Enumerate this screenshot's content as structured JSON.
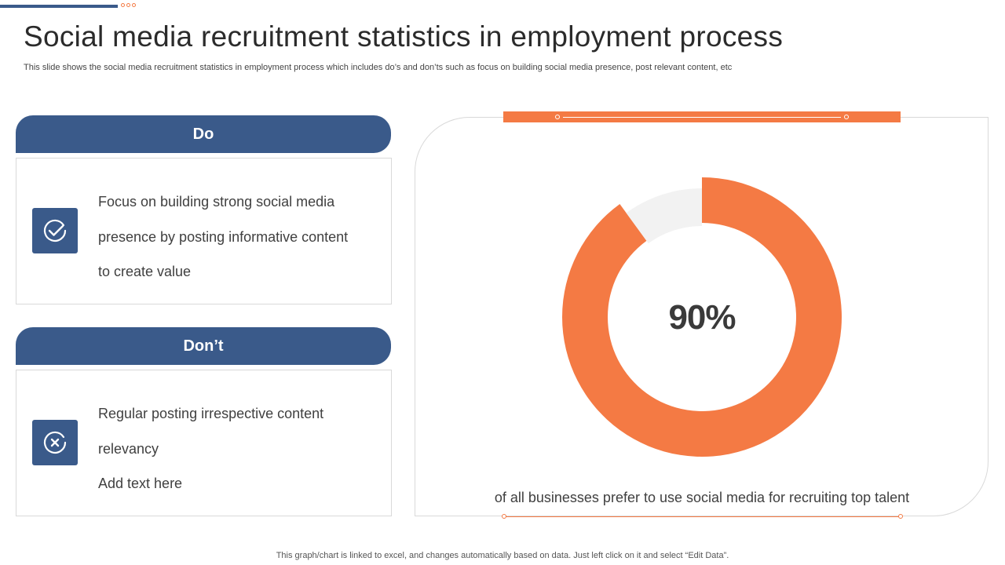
{
  "title": "Social media recruitment statistics in employment process",
  "subtitle": "This slide shows the social media recruitment statistics in employment process which includes do’s and don’ts such as focus on building social media presence, post relevant content, etc",
  "do_section": {
    "header": "Do",
    "icon": "check-circle-icon",
    "lines": [
      "Focus on building strong social media",
      "presence by posting informative content",
      "to create value"
    ]
  },
  "dont_section": {
    "header": "Don’t",
    "icon": "x-circle-icon",
    "lines": [
      "Regular posting irrespective content",
      "relevancy",
      "Add text here"
    ]
  },
  "chart_data": {
    "type": "pie",
    "categories": [
      "",
      ""
    ],
    "values": [
      90,
      10
    ],
    "center_label": "90%",
    "caption": "of all businesses prefer to use social media for recruiting top talent",
    "colors": [
      "#f47a44",
      "#f2f2f2"
    ]
  },
  "footer": "This graph/chart is linked to excel,  and changes automatically based on data. Just left click on it and select “Edit Data”.",
  "colors": {
    "accent_blue": "#3a5a8a",
    "accent_orange": "#f47a44"
  }
}
